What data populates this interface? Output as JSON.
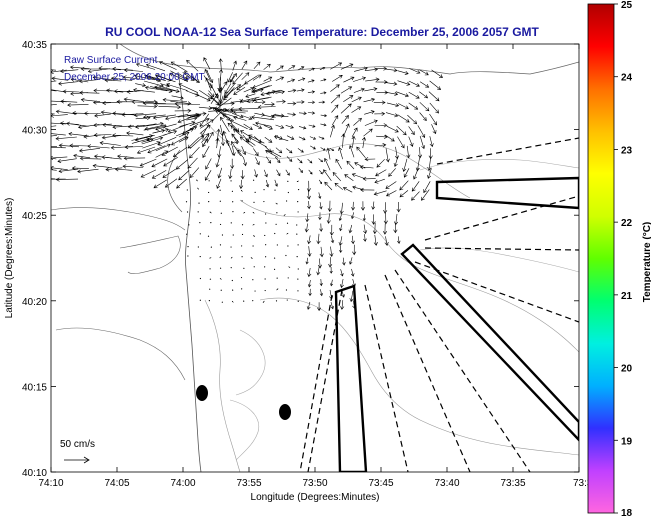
{
  "title": "RU COOL  NOAA-12  Sea Surface Temperature:  December 25, 2006 2057 GMT",
  "legend": {
    "line1": "Raw Surface Current",
    "line2": "December 25, 2006 20:00 GMT"
  },
  "scale_label": "50 cm/s",
  "x_axis": {
    "label": "Longitude (Degrees:Minutes)",
    "ticks": [
      "74:10",
      "74:05",
      "74:00",
      "73:55",
      "73:50",
      "73:45",
      "73:40",
      "73:35",
      "73:3"
    ]
  },
  "y_axis": {
    "label": "Latitude (Degrees:Minutes)",
    "ticks": [
      "40:35",
      "40:30",
      "40:25",
      "40:20",
      "40:15",
      "40:10"
    ]
  },
  "colorbar": {
    "label": "Temperature (°C)",
    "ticks": [
      "25",
      "24",
      "23",
      "22",
      "21",
      "20",
      "19",
      "18"
    ],
    "range": [
      18,
      25
    ],
    "colors": [
      "#ff66e0",
      "#c040ff",
      "#3030ff",
      "#00b0ff",
      "#00f0e0",
      "#00ff70",
      "#60ff00",
      "#d0ff00",
      "#ffff00",
      "#ffc000",
      "#ff7000",
      "#ff0000",
      "#b00000"
    ]
  }
}
